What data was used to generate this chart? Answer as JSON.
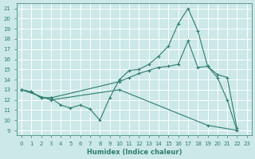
{
  "xlabel": "Humidex (Indice chaleur)",
  "bg_color": "#cce8e8",
  "grid_color": "#ffffff",
  "line_color": "#2e7d6e",
  "xlim": [
    -0.5,
    23.5
  ],
  "ylim": [
    8.5,
    21.5
  ],
  "yticks": [
    9,
    10,
    11,
    12,
    13,
    14,
    15,
    16,
    17,
    18,
    19,
    20,
    21
  ],
  "xticks": [
    0,
    1,
    2,
    3,
    4,
    5,
    6,
    7,
    8,
    9,
    10,
    11,
    12,
    13,
    14,
    15,
    16,
    17,
    18,
    19,
    20,
    21,
    22,
    23
  ],
  "line1_x": [
    0,
    1,
    2,
    3,
    4,
    5,
    6,
    7,
    8,
    9,
    10,
    11,
    12,
    13,
    14,
    15,
    16,
    17,
    18,
    19,
    20,
    21,
    22
  ],
  "line1_y": [
    13.0,
    12.8,
    12.2,
    12.2,
    11.5,
    11.2,
    11.5,
    11.1,
    10.0,
    12.2,
    14.0,
    14.9,
    15.0,
    15.5,
    16.3,
    17.3,
    19.5,
    21.0,
    18.8,
    15.3,
    14.2,
    12.0,
    9.0
  ],
  "line2_x": [
    0,
    1,
    2,
    3,
    10,
    11,
    12,
    13,
    14,
    15,
    16,
    17,
    18,
    19,
    20,
    21,
    22
  ],
  "line2_y": [
    13.0,
    12.8,
    12.2,
    12.2,
    13.8,
    14.2,
    14.6,
    14.9,
    15.2,
    15.3,
    15.5,
    17.8,
    15.2,
    15.3,
    14.5,
    14.2,
    9.2
  ],
  "line3_x": [
    0,
    3,
    10,
    19,
    22
  ],
  "line3_y": [
    13.0,
    12.0,
    13.0,
    9.5,
    9.0
  ]
}
